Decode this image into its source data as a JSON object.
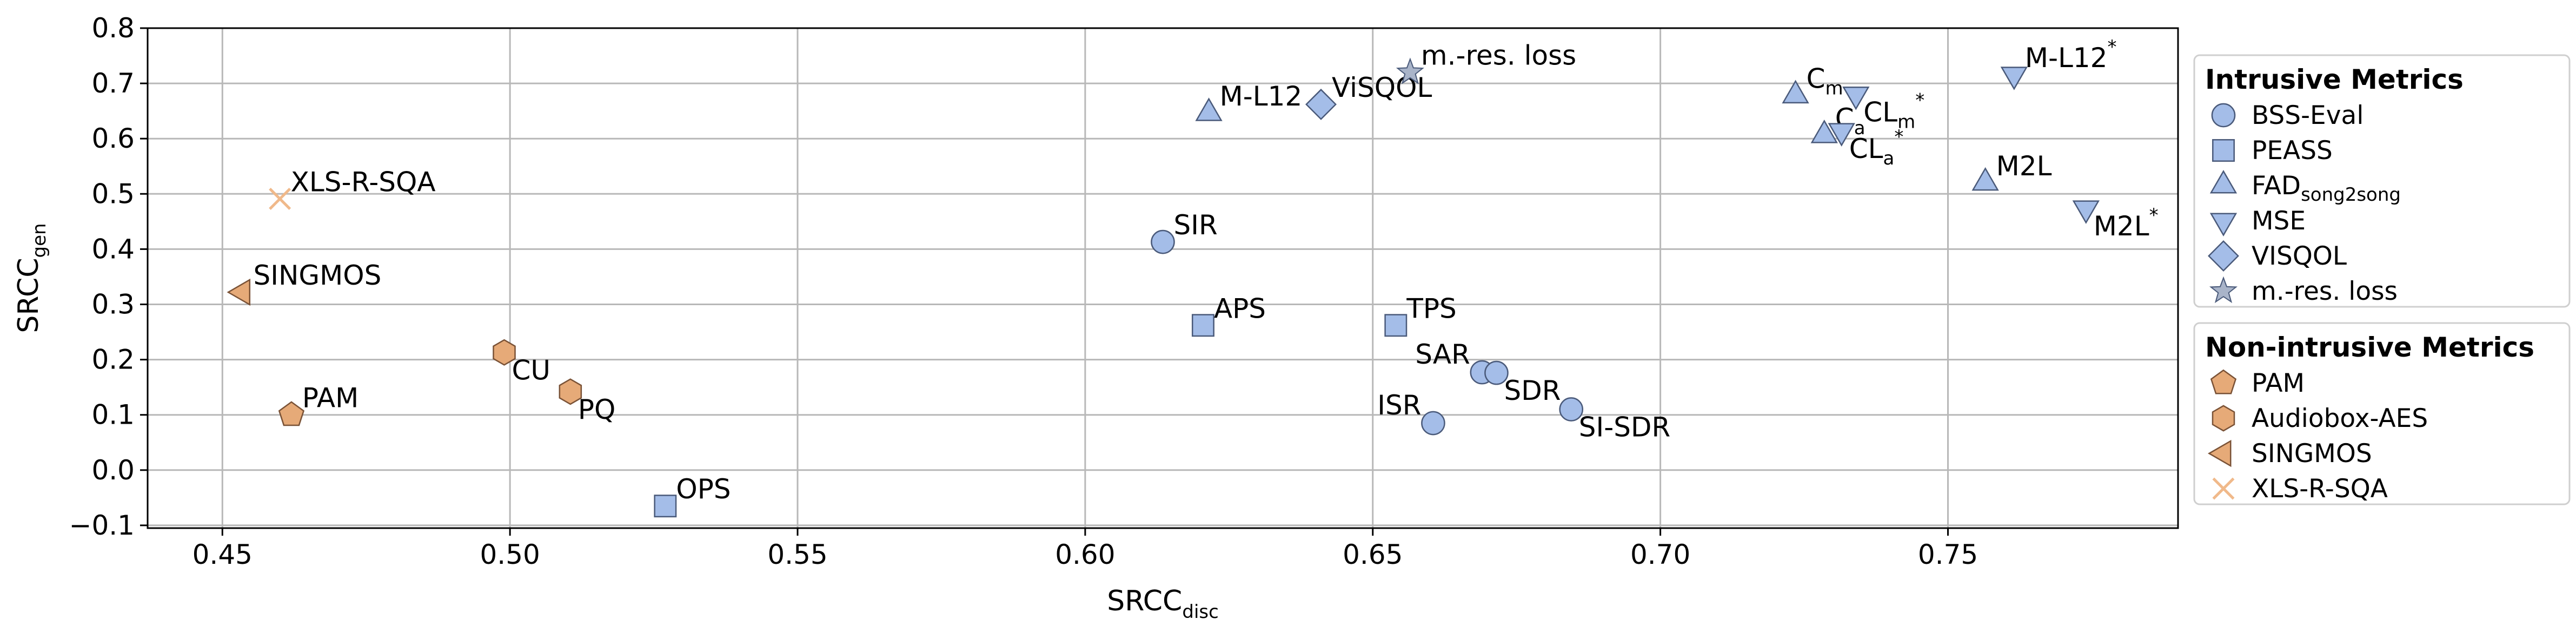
{
  "chart_data": {
    "type": "scatter",
    "xlabel": "SRCC",
    "xlabel_sub": "disc",
    "ylabel": "SRCC",
    "ylabel_sub": "gen",
    "xlim": [
      0.437,
      0.79
    ],
    "ylim": [
      -0.105,
      0.8
    ],
    "x_ticks": [
      0.45,
      0.5,
      0.55,
      0.6,
      0.65,
      0.7,
      0.75
    ],
    "x_tick_labels": [
      "0.45",
      "0.50",
      "0.55",
      "0.60",
      "0.65",
      "0.70",
      "0.75"
    ],
    "y_ticks": [
      -0.1,
      0.0,
      0.1,
      0.2,
      0.3,
      0.4,
      0.5,
      0.6,
      0.7,
      0.8
    ],
    "y_tick_labels": [
      "−0.1",
      "0.0",
      "0.1",
      "0.2",
      "0.3",
      "0.4",
      "0.5",
      "0.6",
      "0.7",
      "0.8"
    ],
    "grid": true,
    "colors": {
      "intrusive": "#a4bde8",
      "intrusive_edge": "#4a5a7a",
      "star": "#a9b4c9",
      "nonintrusive": "#e6aa78",
      "nonintrusive_edge": "#7a5236",
      "cross": "#f0b98a"
    },
    "legends": [
      {
        "title": "Intrusive Metrics",
        "placement": "right-top",
        "entries": [
          {
            "label": "BSS-Eval",
            "label_sub": "",
            "marker": "circle",
            "group": "intrusive"
          },
          {
            "label": "PEASS",
            "label_sub": "",
            "marker": "square",
            "group": "intrusive"
          },
          {
            "label": "FAD",
            "label_sub": "song2song",
            "marker": "triangle-up",
            "group": "intrusive"
          },
          {
            "label": "MSE",
            "label_sub": "",
            "marker": "triangle-down",
            "group": "intrusive"
          },
          {
            "label": "VISQOL",
            "label_sub": "",
            "marker": "diamond",
            "group": "intrusive"
          },
          {
            "label": "m.-res. loss",
            "label_sub": "",
            "marker": "star",
            "group": "star"
          }
        ]
      },
      {
        "title": "Non-intrusive Metrics",
        "placement": "right-bottom",
        "entries": [
          {
            "label": "PAM",
            "label_sub": "",
            "marker": "pentagon",
            "group": "nonintrusive"
          },
          {
            "label": "Audiobox-AES",
            "label_sub": "",
            "marker": "hexagon",
            "group": "nonintrusive"
          },
          {
            "label": "SINGMOS",
            "label_sub": "",
            "marker": "triangle-left",
            "group": "nonintrusive"
          },
          {
            "label": "XLS-R-SQA",
            "label_sub": "",
            "marker": "cross",
            "group": "cross"
          }
        ]
      }
    ],
    "points": [
      {
        "label": "SIR",
        "sub": "",
        "sup": "",
        "x": 0.6135,
        "y": 0.413,
        "marker": "circle",
        "group": "intrusive",
        "anchor": "ur"
      },
      {
        "label": "SAR",
        "sub": "",
        "sup": "",
        "x": 0.669,
        "y": 0.177,
        "marker": "circle",
        "group": "intrusive",
        "anchor": "ul"
      },
      {
        "label": "SDR",
        "sub": "",
        "sup": "",
        "x": 0.6715,
        "y": 0.176,
        "marker": "circle",
        "group": "intrusive",
        "anchor": "dr"
      },
      {
        "label": "ISR",
        "sub": "",
        "sup": "",
        "x": 0.6605,
        "y": 0.085,
        "marker": "circle",
        "group": "intrusive",
        "anchor": "ul"
      },
      {
        "label": "SI-SDR",
        "sub": "",
        "sup": "",
        "x": 0.6845,
        "y": 0.11,
        "marker": "circle",
        "group": "intrusive",
        "anchor": "dr"
      },
      {
        "label": "APS",
        "sub": "",
        "sup": "",
        "x": 0.6205,
        "y": 0.262,
        "marker": "square",
        "group": "intrusive",
        "anchor": "ur"
      },
      {
        "label": "TPS",
        "sub": "",
        "sup": "",
        "x": 0.654,
        "y": 0.262,
        "marker": "square",
        "group": "intrusive",
        "anchor": "ur"
      },
      {
        "label": "OPS",
        "sub": "",
        "sup": "",
        "x": 0.527,
        "y": -0.065,
        "marker": "square",
        "group": "intrusive",
        "anchor": "ur"
      },
      {
        "label": "M-L12",
        "sub": "",
        "sup": "",
        "x": 0.6215,
        "y": 0.646,
        "marker": "triangle-up",
        "group": "intrusive",
        "anchor": "ur"
      },
      {
        "label": "C",
        "sub": "m",
        "sup": "",
        "x": 0.7235,
        "y": 0.678,
        "marker": "triangle-up",
        "group": "intrusive",
        "anchor": "ur"
      },
      {
        "label": "C",
        "sub": "a",
        "sup": "",
        "x": 0.7285,
        "y": 0.606,
        "marker": "triangle-up",
        "group": "intrusive",
        "anchor": "ur"
      },
      {
        "label": "M2L",
        "sub": "",
        "sup": "",
        "x": 0.7565,
        "y": 0.52,
        "marker": "triangle-up",
        "group": "intrusive",
        "anchor": "ur"
      },
      {
        "label": "M-L12",
        "sub": "",
        "sup": "*",
        "x": 0.7615,
        "y": 0.716,
        "marker": "triangle-down",
        "group": "intrusive",
        "anchor": "ur"
      },
      {
        "label": "CL",
        "sub": "m",
        "sup": "*",
        "x": 0.734,
        "y": 0.68,
        "marker": "triangle-down",
        "group": "intrusive",
        "anchor": "dr"
      },
      {
        "label": "CL",
        "sub": "a",
        "sup": "*",
        "x": 0.7315,
        "y": 0.614,
        "marker": "triangle-down",
        "group": "intrusive",
        "anchor": "dr"
      },
      {
        "label": "M2L",
        "sub": "",
        "sup": "*",
        "x": 0.774,
        "y": 0.474,
        "marker": "triangle-down",
        "group": "intrusive",
        "anchor": "dr"
      },
      {
        "label": "ViSQOL",
        "sub": "",
        "sup": "",
        "x": 0.641,
        "y": 0.662,
        "marker": "diamond",
        "group": "intrusive",
        "anchor": "ur"
      },
      {
        "label": "m.-res. loss",
        "sub": "",
        "sup": "",
        "x": 0.6565,
        "y": 0.72,
        "marker": "star",
        "group": "star",
        "anchor": "ur"
      },
      {
        "label": "PAM",
        "sub": "",
        "sup": "",
        "x": 0.462,
        "y": 0.1,
        "marker": "pentagon",
        "group": "nonintrusive",
        "anchor": "ur"
      },
      {
        "label": "CU",
        "sub": "",
        "sup": "",
        "x": 0.499,
        "y": 0.213,
        "marker": "hexagon",
        "group": "nonintrusive",
        "anchor": "dr"
      },
      {
        "label": "PQ",
        "sub": "",
        "sup": "",
        "x": 0.5105,
        "y": 0.142,
        "marker": "hexagon",
        "group": "nonintrusive",
        "anchor": "dr"
      },
      {
        "label": "SINGMOS",
        "sub": "",
        "sup": "",
        "x": 0.4535,
        "y": 0.322,
        "marker": "triangle-left",
        "group": "nonintrusive",
        "anchor": "ur"
      },
      {
        "label": "XLS-R-SQA",
        "sub": "",
        "sup": "",
        "x": 0.46,
        "y": 0.491,
        "marker": "cross",
        "group": "cross",
        "anchor": "ur"
      }
    ]
  }
}
